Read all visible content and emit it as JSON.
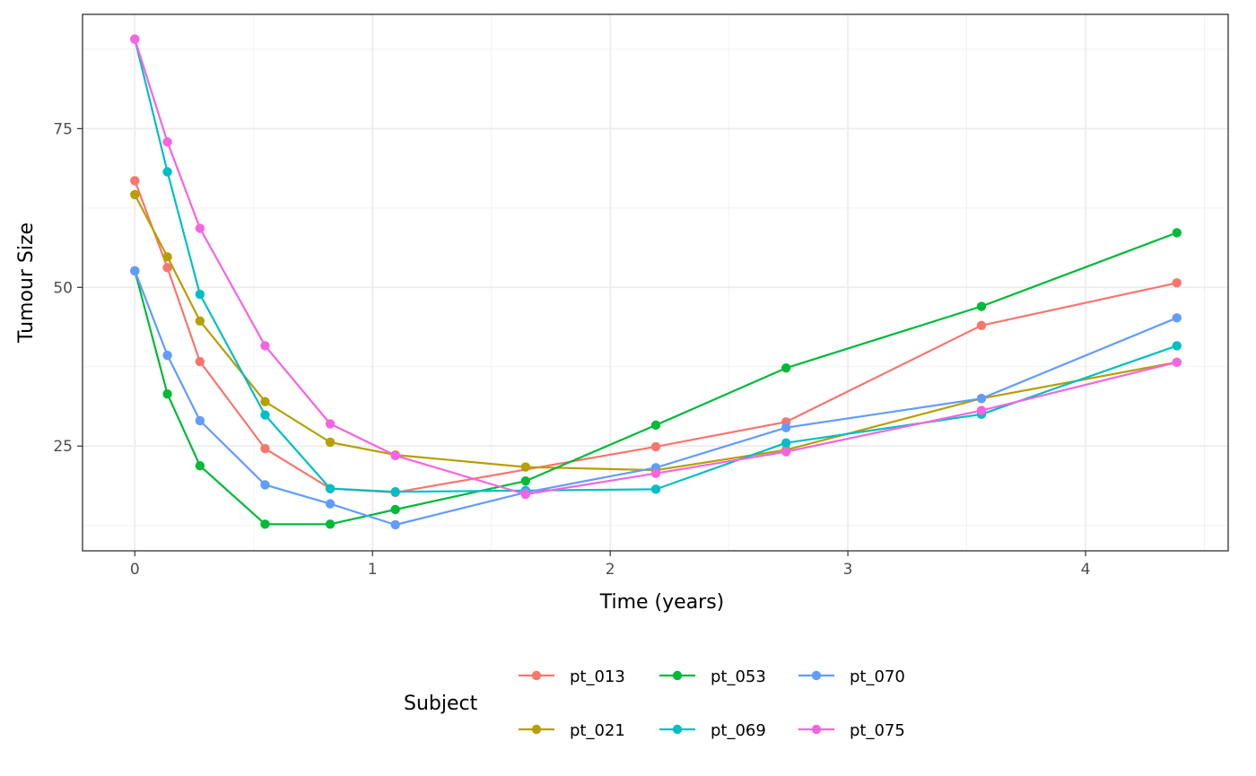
{
  "chart_data": {
    "type": "line",
    "xlabel": "Time (years)",
    "ylabel": "Tumour Size",
    "xlim": [
      -0.22,
      4.6
    ],
    "ylim": [
      8.5,
      93
    ],
    "x_ticks": [
      0,
      1,
      2,
      3,
      4
    ],
    "y_ticks": [
      25,
      50,
      75
    ],
    "grid": true,
    "markers": true,
    "legend": {
      "title": "Subject",
      "position": "bottom",
      "layout": "3 columns x 2 rows"
    },
    "series": [
      {
        "name": "pt_013",
        "color": "#F8766D",
        "x": [
          0,
          0.137,
          0.274,
          0.548,
          0.822,
          1.096,
          2.192,
          2.74,
          3.562,
          4.384
        ],
        "y": [
          66.8,
          53.1,
          38.3,
          24.6,
          18.3,
          17.7,
          24.9,
          28.8,
          44.0,
          50.7
        ]
      },
      {
        "name": "pt_021",
        "color": "#B79F00",
        "x": [
          0,
          0.137,
          0.274,
          0.548,
          0.822,
          1.096,
          1.644,
          2.192,
          2.74,
          3.562,
          4.384
        ],
        "y": [
          64.6,
          54.8,
          44.7,
          32.0,
          25.6,
          23.6,
          21.7,
          21.2,
          24.4,
          32.5,
          38.2
        ]
      },
      {
        "name": "pt_053",
        "color": "#00BA38",
        "x": [
          0,
          0.137,
          0.274,
          0.548,
          0.822,
          1.096,
          1.644,
          2.192,
          2.74,
          3.562,
          4.384
        ],
        "y": [
          52.6,
          33.2,
          21.9,
          12.7,
          12.7,
          15.0,
          19.5,
          28.3,
          37.3,
          47.0,
          58.6
        ]
      },
      {
        "name": "pt_069",
        "color": "#00BFC4",
        "x": [
          0,
          0.137,
          0.274,
          0.548,
          0.822,
          1.096,
          1.644,
          2.192,
          2.74,
          3.562,
          4.384
        ],
        "y": [
          89.1,
          68.2,
          48.9,
          29.9,
          18.3,
          17.8,
          18.0,
          18.2,
          25.5,
          30.0,
          40.8
        ]
      },
      {
        "name": "pt_070",
        "color": "#619CFF",
        "x": [
          0,
          0.137,
          0.274,
          0.548,
          0.822,
          1.096,
          1.644,
          2.192,
          2.74,
          3.562,
          4.384
        ],
        "y": [
          52.6,
          39.3,
          29.0,
          18.9,
          15.9,
          12.6,
          17.7,
          21.6,
          27.9,
          32.5,
          45.2
        ]
      },
      {
        "name": "pt_075",
        "color": "#F564E3",
        "x": [
          0,
          0.137,
          0.274,
          0.548,
          0.822,
          1.096,
          1.644,
          2.192,
          2.74,
          3.562,
          4.384
        ],
        "y": [
          89.1,
          72.9,
          59.3,
          40.8,
          28.5,
          23.5,
          17.4,
          20.7,
          24.1,
          30.6,
          38.2
        ]
      }
    ]
  }
}
